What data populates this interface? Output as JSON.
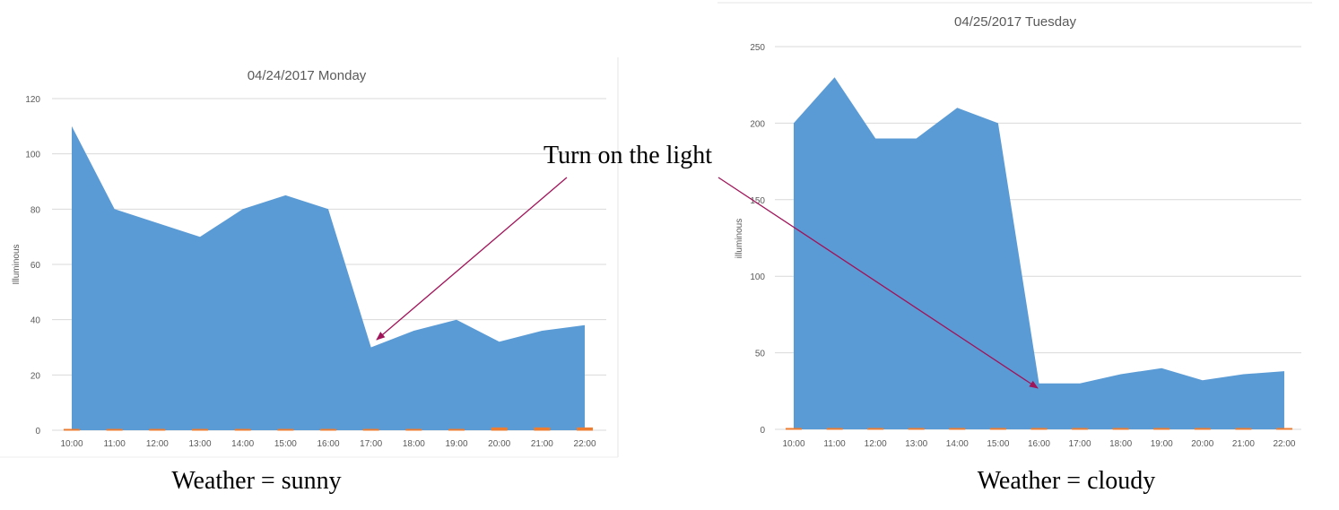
{
  "colors": {
    "area": "#5b9bd5",
    "secondary_series": "#ed7d31",
    "grid": "#d9d9d9",
    "arrow": "#a0145a",
    "text": "#595959"
  },
  "annotation": "Turn on the light",
  "chart_data": [
    {
      "type": "area",
      "title": "04/24/2017 Monday",
      "xlabel": "",
      "ylabel": "Illuminous",
      "ylim": [
        0,
        120
      ],
      "yticks": [
        0,
        20,
        40,
        60,
        80,
        100,
        120
      ],
      "grid": true,
      "categories": [
        "10:00",
        "11:00",
        "12:00",
        "13:00",
        "14:00",
        "15:00",
        "16:00",
        "17:00",
        "18:00",
        "19:00",
        "20:00",
        "21:00",
        "22:00"
      ],
      "series": [
        {
          "values": [
            110,
            80,
            75,
            70,
            80,
            85,
            80,
            30,
            36,
            40,
            32,
            36,
            38
          ]
        },
        {
          "values": [
            0,
            0,
            0,
            0,
            0,
            0,
            0,
            0,
            0,
            0,
            1,
            1,
            1
          ]
        }
      ],
      "caption": "Weather  = sunny"
    },
    {
      "type": "area",
      "title": "04/25/2017 Tuesday",
      "xlabel": "",
      "ylabel": "illuminous",
      "ylim": [
        0,
        250
      ],
      "yticks": [
        0,
        50,
        100,
        150,
        200,
        250
      ],
      "grid": true,
      "categories": [
        "10:00",
        "11:00",
        "12:00",
        "13:00",
        "14:00",
        "15:00",
        "16:00",
        "17:00",
        "18:00",
        "19:00",
        "20:00",
        "21:00",
        "22:00"
      ],
      "series": [
        {
          "values": [
            200,
            230,
            190,
            190,
            210,
            200,
            30,
            30,
            36,
            40,
            32,
            36,
            38
          ]
        },
        {
          "values": [
            0,
            0,
            0,
            0,
            0,
            0,
            0,
            0,
            0,
            0,
            0,
            0,
            0
          ]
        }
      ],
      "caption": "Weather = cloudy"
    }
  ]
}
